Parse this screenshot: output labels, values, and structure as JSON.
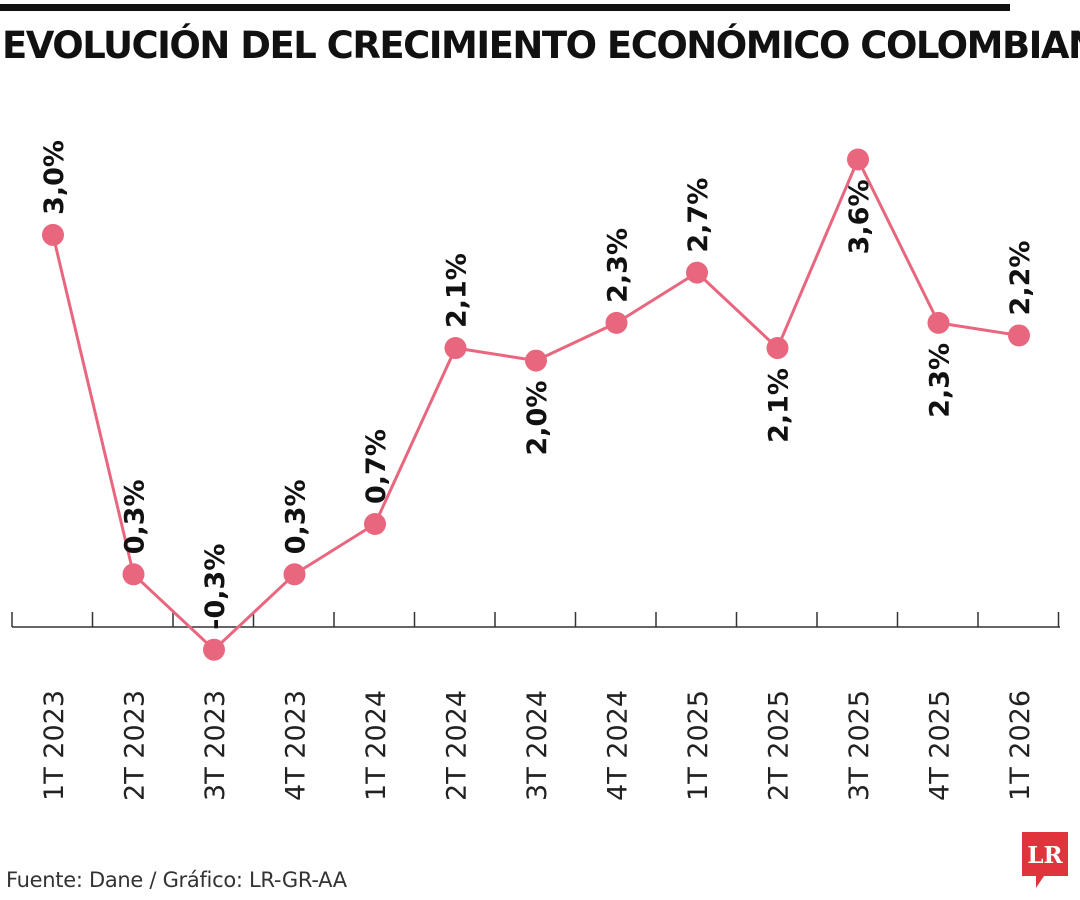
{
  "header": {
    "title": "EVOLUCIÓN DEL CRECIMIENTO ECONÓMICO COLOMBIANO"
  },
  "footer": {
    "source": "Fuente: Dane / Gráfico: LR-GR-AA",
    "logo_text": "LR"
  },
  "colors": {
    "series": "#e8677f",
    "axis": "#333333",
    "text": "#111111",
    "logo": "#e0343c"
  },
  "chart_data": {
    "type": "line",
    "title": "EVOLUCIÓN DEL CRECIMIENTO ECONÓMICO COLOMBIANO",
    "xlabel": "",
    "ylabel": "",
    "grid": false,
    "legend": "none",
    "categories": [
      "1T 2023",
      "2T 2023",
      "3T 2023",
      "4T 2023",
      "1T 2024",
      "2T 2024",
      "3T 2024",
      "4T 2024",
      "1T 2025",
      "2T 2025",
      "3T 2025",
      "4T 2025",
      "1T 2026"
    ],
    "series": [
      {
        "values": [
          3.0,
          0.3,
          -0.3,
          0.3,
          0.7,
          2.1,
          2.0,
          2.3,
          2.7,
          2.1,
          3.6,
          2.3,
          2.2
        ],
        "labels": [
          "3,0%",
          "0,3%",
          "-0,3%",
          "0,3%",
          "0,7%",
          "2,1%",
          "2,0%",
          "2,3%",
          "2,7%",
          "2,1%",
          "3,6%",
          "2,3%",
          "2,2%"
        ],
        "label_positions": [
          "above",
          "above",
          "above",
          "above",
          "above",
          "above",
          "below",
          "above",
          "above",
          "below",
          "below",
          "below",
          "above"
        ]
      }
    ]
  }
}
